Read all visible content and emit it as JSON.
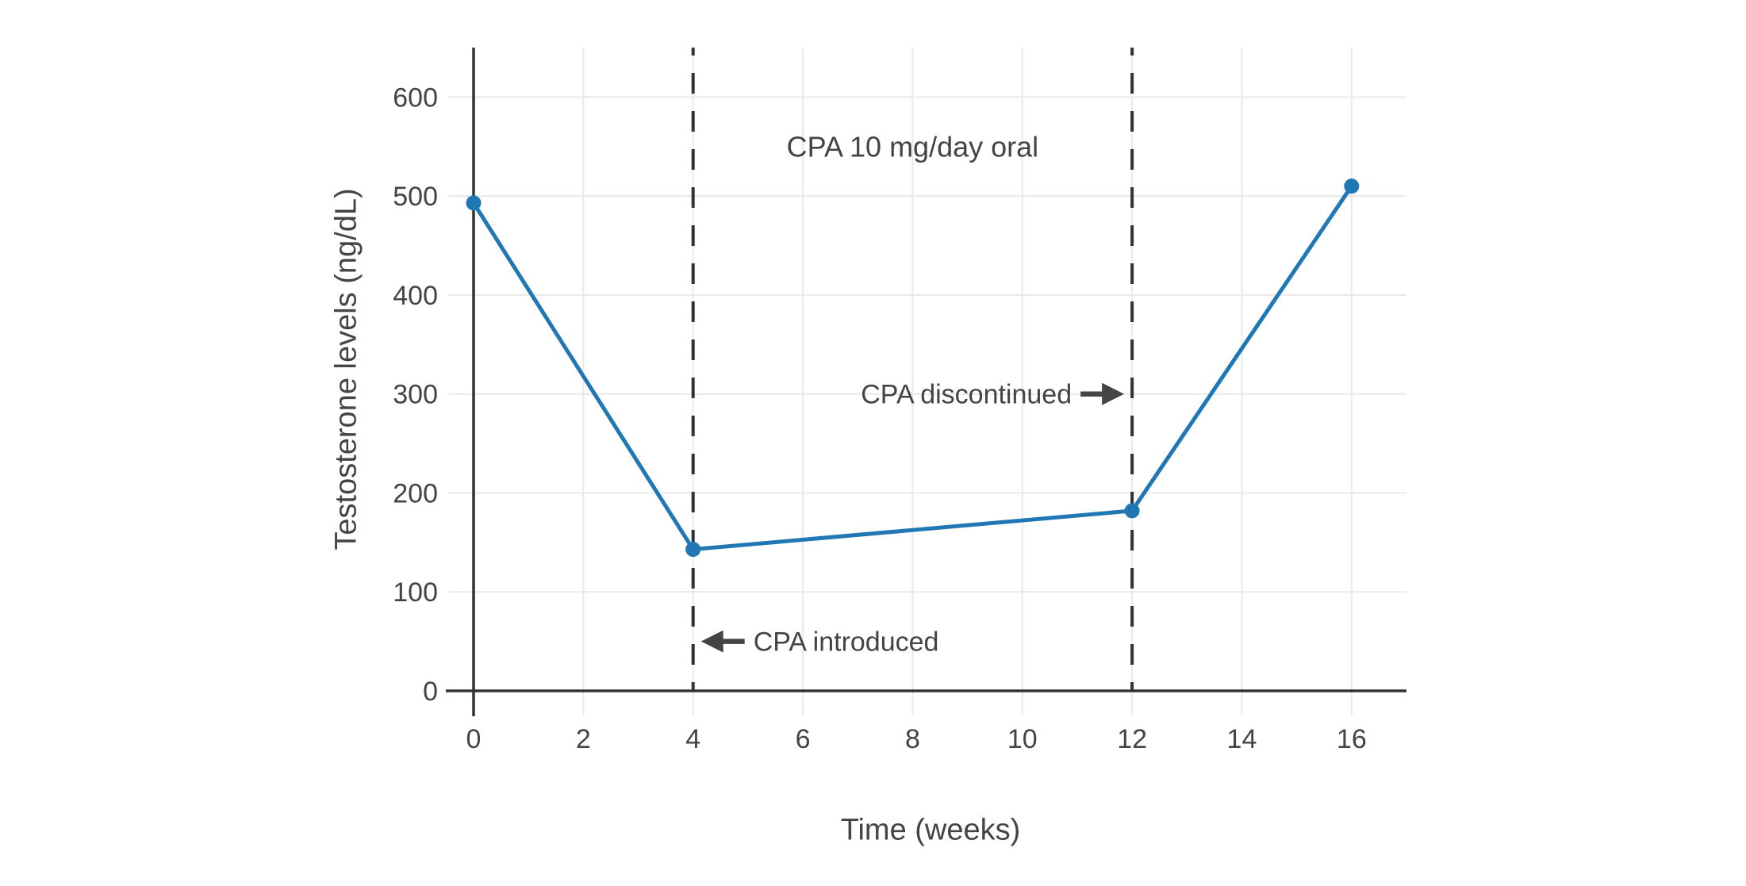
{
  "chart_data": {
    "type": "line",
    "title": "CPA 10 mg/day oral",
    "xlabel": "Time (weeks)",
    "ylabel": "Testosterone levels (ng/dL)",
    "series": [
      {
        "name": "Testosterone levels",
        "x": [
          0,
          4,
          12,
          16
        ],
        "y": [
          493,
          143,
          182,
          510
        ]
      }
    ],
    "xticks": [
      0,
      2,
      4,
      6,
      8,
      10,
      12,
      14,
      16
    ],
    "yticks": [
      0,
      100,
      200,
      300,
      400,
      500,
      600
    ],
    "xlim": [
      0,
      17
    ],
    "ylim": [
      0,
      650
    ],
    "grid": true,
    "legend": "none",
    "vlines": [
      {
        "x": 4,
        "style": "dashed"
      },
      {
        "x": 12,
        "style": "dashed"
      }
    ],
    "annotations": [
      {
        "text": "CPA 10 mg/day oral",
        "x": 8,
        "y": 550,
        "arrow": "none"
      },
      {
        "text": "CPA introduced",
        "x": 4,
        "y": 50,
        "arrow": "left"
      },
      {
        "text": "CPA discontinued",
        "x": 12,
        "y": 300,
        "arrow": "right"
      }
    ],
    "colors": {
      "line": "#1f77b4",
      "marker": "#1f77b4",
      "text": "#444444",
      "axis": "#333333",
      "grid": "#e9e9e9",
      "dashed": "#333333",
      "background": "#ffffff"
    }
  }
}
